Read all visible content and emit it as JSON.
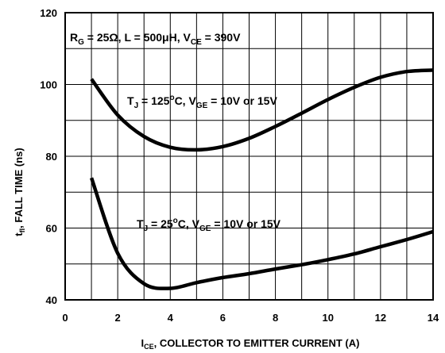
{
  "chart_data": {
    "type": "line",
    "xlabel_main": "I",
    "xlabel_sub": "CE",
    "xlabel_rest": ", COLLECTOR TO EMITTER CURRENT (A)",
    "ylabel_main": "t",
    "ylabel_sub": "fI",
    "ylabel_rest": ", FALL TIME (ns)",
    "xlim": [
      0,
      14
    ],
    "ylim": [
      40,
      120
    ],
    "grid": true,
    "xticks": [
      "0",
      "2",
      "4",
      "6",
      "8",
      "10",
      "12",
      "14"
    ],
    "yticks": [
      "40",
      "60",
      "80",
      "100",
      "120"
    ],
    "conditions": {
      "rg_main": "R",
      "rg_sub": "G",
      "rg_val": " = 25Ω, L = 500μH, V",
      "vce_sub": "CE",
      "vce_val": " = 390V"
    },
    "series": [
      {
        "label_t": "T",
        "label_j": "J",
        "label_temp": " = 125",
        "label_deg": "o",
        "label_c": "C, V",
        "label_ge": "GE",
        "label_tail": " = 10V or 15V",
        "x": [
          1,
          2,
          3,
          4,
          5,
          6,
          7,
          8,
          9,
          10,
          11,
          12,
          13,
          14
        ],
        "y": [
          101.5,
          91.5,
          85.5,
          82.5,
          81.8,
          82.7,
          85,
          88.3,
          92,
          95.8,
          99.2,
          102,
          103.6,
          104
        ]
      },
      {
        "label_t": "T",
        "label_j": "J",
        "label_temp": " = 25",
        "label_deg": "o",
        "label_c": "C, V",
        "label_ge": "GE",
        "label_tail": " = 10V or 15V",
        "x": [
          1,
          2,
          3,
          4,
          5,
          6,
          7,
          8,
          9,
          10,
          11,
          12,
          13,
          14
        ],
        "y": [
          74,
          53,
          44.5,
          43.2,
          44.8,
          46.2,
          47.3,
          48.6,
          49.8,
          51.2,
          52.8,
          54.8,
          56.8,
          59
        ]
      }
    ]
  }
}
